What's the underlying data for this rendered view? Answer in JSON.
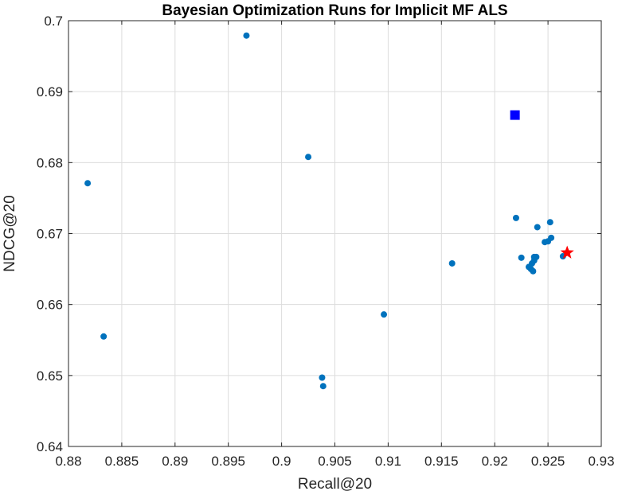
{
  "chart_data": {
    "type": "scatter",
    "title": "Bayesian Optimization Runs for Implicit MF ALS",
    "xlabel": "Recall@20",
    "ylabel": "NDCG@20",
    "xlim": [
      0.88,
      0.93
    ],
    "ylim": [
      0.64,
      0.7
    ],
    "x_ticks": [
      "0.88",
      "0.885",
      "0.89",
      "0.895",
      "0.9",
      "0.905",
      "0.91",
      "0.915",
      "0.92",
      "0.925",
      "0.93"
    ],
    "y_ticks": [
      "0.64",
      "0.65",
      "0.66",
      "0.67",
      "0.68",
      "0.69",
      "0.7"
    ],
    "grid": true,
    "colors": {
      "runs": "#0072bd",
      "best_observed": "#0000ff",
      "best_estimated": "#ff0000"
    },
    "series": [
      {
        "marker": "circle",
        "points": [
          {
            "x": 0.8967,
            "y": 0.6979
          },
          {
            "x": 0.9025,
            "y": 0.6808
          },
          {
            "x": 0.8818,
            "y": 0.6771
          },
          {
            "x": 0.8833,
            "y": 0.6555
          },
          {
            "x": 0.9038,
            "y": 0.6497
          },
          {
            "x": 0.9039,
            "y": 0.6485
          },
          {
            "x": 0.9096,
            "y": 0.6586
          },
          {
            "x": 0.916,
            "y": 0.6658
          },
          {
            "x": 0.922,
            "y": 0.6722
          },
          {
            "x": 0.9225,
            "y": 0.6666
          },
          {
            "x": 0.9232,
            "y": 0.6653
          },
          {
            "x": 0.9234,
            "y": 0.665
          },
          {
            "x": 0.9236,
            "y": 0.6647
          },
          {
            "x": 0.9235,
            "y": 0.6658
          },
          {
            "x": 0.9237,
            "y": 0.6662
          },
          {
            "x": 0.9237,
            "y": 0.6667
          },
          {
            "x": 0.9239,
            "y": 0.6667
          },
          {
            "x": 0.924,
            "y": 0.6709
          },
          {
            "x": 0.9247,
            "y": 0.6688
          },
          {
            "x": 0.925,
            "y": 0.6689
          },
          {
            "x": 0.9252,
            "y": 0.6716
          },
          {
            "x": 0.9253,
            "y": 0.6694
          },
          {
            "x": 0.9264,
            "y": 0.6668
          }
        ]
      },
      {
        "marker": "square",
        "points": [
          {
            "x": 0.9219,
            "y": 0.6867
          }
        ]
      },
      {
        "marker": "star",
        "points": [
          {
            "x": 0.9268,
            "y": 0.6673
          }
        ]
      }
    ]
  }
}
